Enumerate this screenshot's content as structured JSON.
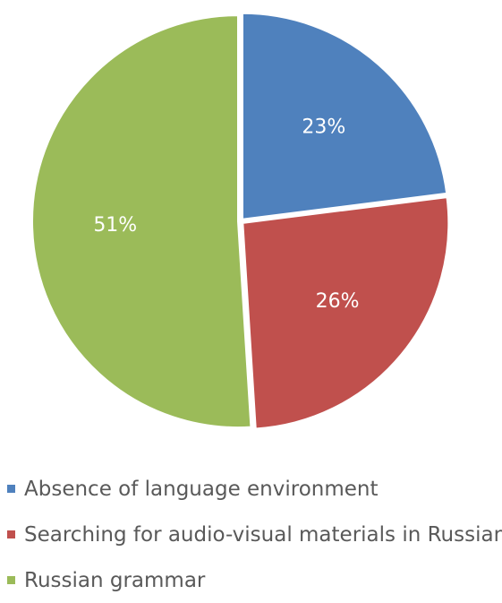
{
  "chart_data": {
    "type": "pie",
    "categories": [
      "Absence of language environment",
      "Searching for audio-visual materials in Russian",
      "Russian grammar"
    ],
    "values": [
      23,
      26,
      51
    ],
    "data_labels": [
      "23%",
      "26%",
      "51%"
    ],
    "colors": [
      "#4F81BD",
      "#C0504D",
      "#9BBB59"
    ],
    "legend_position": "bottom",
    "title": "",
    "start_angle": "top, clockwise"
  }
}
